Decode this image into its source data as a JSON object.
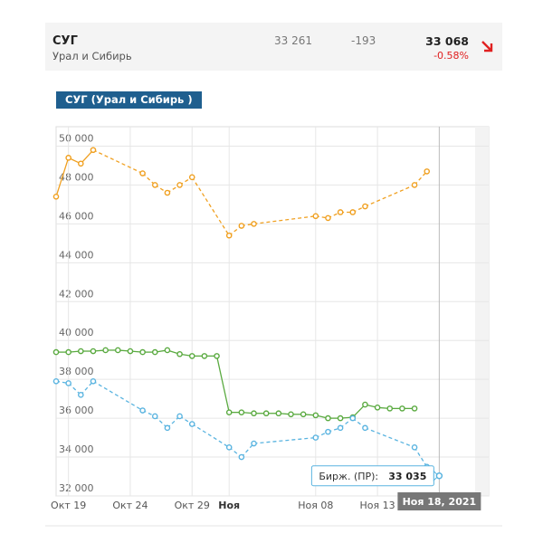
{
  "quote": {
    "name": "СУГ",
    "region": "Урал и Сибирь",
    "open": "33 261",
    "change": "-193",
    "last": "33 068",
    "change_pct": "-0.58%",
    "trend": "down"
  },
  "chart_tag": "СУГ (Урал и Сибирь )",
  "colors": {
    "orange": "#f0a020",
    "green": "#5aaa40",
    "blue": "#5ab4e0",
    "arrow": "#e02020"
  },
  "chart_data": {
    "type": "line",
    "title": "СУГ (Урал и Сибирь )",
    "xlabel": "",
    "ylabel": "",
    "ylim": [
      32000,
      51000
    ],
    "y_ticks": [
      32000,
      34000,
      36000,
      38000,
      40000,
      42000,
      44000,
      46000,
      48000,
      50000
    ],
    "y_tick_labels": [
      "32 000",
      "34 000",
      "36 000",
      "38 000",
      "40 000",
      "42 000",
      "44 000",
      "46 000",
      "48 000",
      "50 000"
    ],
    "x_range": [
      "2021-10-18",
      "2021-11-22"
    ],
    "x_ticks": [
      {
        "date": "2021-10-19",
        "label": "Окт 19",
        "bold": false
      },
      {
        "date": "2021-10-24",
        "label": "Окт 24",
        "bold": false
      },
      {
        "date": "2021-10-29",
        "label": "Окт 29",
        "bold": false
      },
      {
        "date": "2021-11-01",
        "label": "Ноя",
        "bold": true
      },
      {
        "date": "2021-11-08",
        "label": "Ноя 08",
        "bold": false
      },
      {
        "date": "2021-11-13",
        "label": "Ноя 13",
        "bold": false
      }
    ],
    "grid": true,
    "series": [
      {
        "color_key": "orange",
        "points": [
          {
            "x": "2021-10-18",
            "y": 47400
          },
          {
            "x": "2021-10-19",
            "y": 49400
          },
          {
            "x": "2021-10-20",
            "y": 49100
          },
          {
            "x": "2021-10-21",
            "y": 49800
          },
          {
            "x": "2021-10-25",
            "y": 48600
          },
          {
            "x": "2021-10-26",
            "y": 48000
          },
          {
            "x": "2021-10-27",
            "y": 47600
          },
          {
            "x": "2021-10-28",
            "y": 48000
          },
          {
            "x": "2021-10-29",
            "y": 48400
          },
          {
            "x": "2021-11-01",
            "y": 45400
          },
          {
            "x": "2021-11-02",
            "y": 45900
          },
          {
            "x": "2021-11-03",
            "y": 46000
          },
          {
            "x": "2021-11-08",
            "y": 46400
          },
          {
            "x": "2021-11-09",
            "y": 46300
          },
          {
            "x": "2021-11-10",
            "y": 46600
          },
          {
            "x": "2021-11-11",
            "y": 46600
          },
          {
            "x": "2021-11-12",
            "y": 46900
          },
          {
            "x": "2021-11-16",
            "y": 48000
          },
          {
            "x": "2021-11-17",
            "y": 48700
          }
        ]
      },
      {
        "color_key": "green",
        "points": [
          {
            "x": "2021-10-18",
            "y": 39400
          },
          {
            "x": "2021-10-19",
            "y": 39400
          },
          {
            "x": "2021-10-20",
            "y": 39450
          },
          {
            "x": "2021-10-21",
            "y": 39450
          },
          {
            "x": "2021-10-22",
            "y": 39500
          },
          {
            "x": "2021-10-23",
            "y": 39500
          },
          {
            "x": "2021-10-24",
            "y": 39450
          },
          {
            "x": "2021-10-25",
            "y": 39400
          },
          {
            "x": "2021-10-26",
            "y": 39400
          },
          {
            "x": "2021-10-27",
            "y": 39500
          },
          {
            "x": "2021-10-28",
            "y": 39300
          },
          {
            "x": "2021-10-29",
            "y": 39200
          },
          {
            "x": "2021-10-30",
            "y": 39200
          },
          {
            "x": "2021-10-31",
            "y": 39200
          },
          {
            "x": "2021-11-01",
            "y": 36300
          },
          {
            "x": "2021-11-02",
            "y": 36300
          },
          {
            "x": "2021-11-03",
            "y": 36250
          },
          {
            "x": "2021-11-04",
            "y": 36250
          },
          {
            "x": "2021-11-05",
            "y": 36250
          },
          {
            "x": "2021-11-06",
            "y": 36200
          },
          {
            "x": "2021-11-07",
            "y": 36200
          },
          {
            "x": "2021-11-08",
            "y": 36150
          },
          {
            "x": "2021-11-09",
            "y": 36000
          },
          {
            "x": "2021-11-10",
            "y": 36000
          },
          {
            "x": "2021-11-11",
            "y": 36050
          },
          {
            "x": "2021-11-12",
            "y": 36700
          },
          {
            "x": "2021-11-13",
            "y": 36550
          },
          {
            "x": "2021-11-14",
            "y": 36500
          },
          {
            "x": "2021-11-15",
            "y": 36500
          },
          {
            "x": "2021-11-16",
            "y": 36500
          }
        ]
      },
      {
        "color_key": "blue",
        "points": [
          {
            "x": "2021-10-18",
            "y": 37900
          },
          {
            "x": "2021-10-19",
            "y": 37800
          },
          {
            "x": "2021-10-20",
            "y": 37200
          },
          {
            "x": "2021-10-21",
            "y": 37900
          },
          {
            "x": "2021-10-25",
            "y": 36400
          },
          {
            "x": "2021-10-26",
            "y": 36100
          },
          {
            "x": "2021-10-27",
            "y": 35500
          },
          {
            "x": "2021-10-28",
            "y": 36100
          },
          {
            "x": "2021-10-29",
            "y": 35700
          },
          {
            "x": "2021-11-01",
            "y": 34500
          },
          {
            "x": "2021-11-02",
            "y": 34000
          },
          {
            "x": "2021-11-03",
            "y": 34700
          },
          {
            "x": "2021-11-08",
            "y": 35000
          },
          {
            "x": "2021-11-09",
            "y": 35300
          },
          {
            "x": "2021-11-10",
            "y": 35500
          },
          {
            "x": "2021-11-11",
            "y": 36000
          },
          {
            "x": "2021-11-12",
            "y": 35500
          },
          {
            "x": "2021-11-16",
            "y": 34500
          },
          {
            "x": "2021-11-17",
            "y": 33500
          },
          {
            "x": "2021-11-18",
            "y": 33035
          }
        ]
      }
    ],
    "solid_until": [
      "2021-10-21",
      "2021-11-16",
      "2021-10-18"
    ],
    "tooltip": {
      "series_color_key": "blue",
      "label": "Бирж. (ПР):",
      "value": "33 035",
      "x": "2021-11-18",
      "y": 33035
    },
    "crosshair_label": "Ноя 18, 2021",
    "crosshair_x": "2021-11-18"
  }
}
